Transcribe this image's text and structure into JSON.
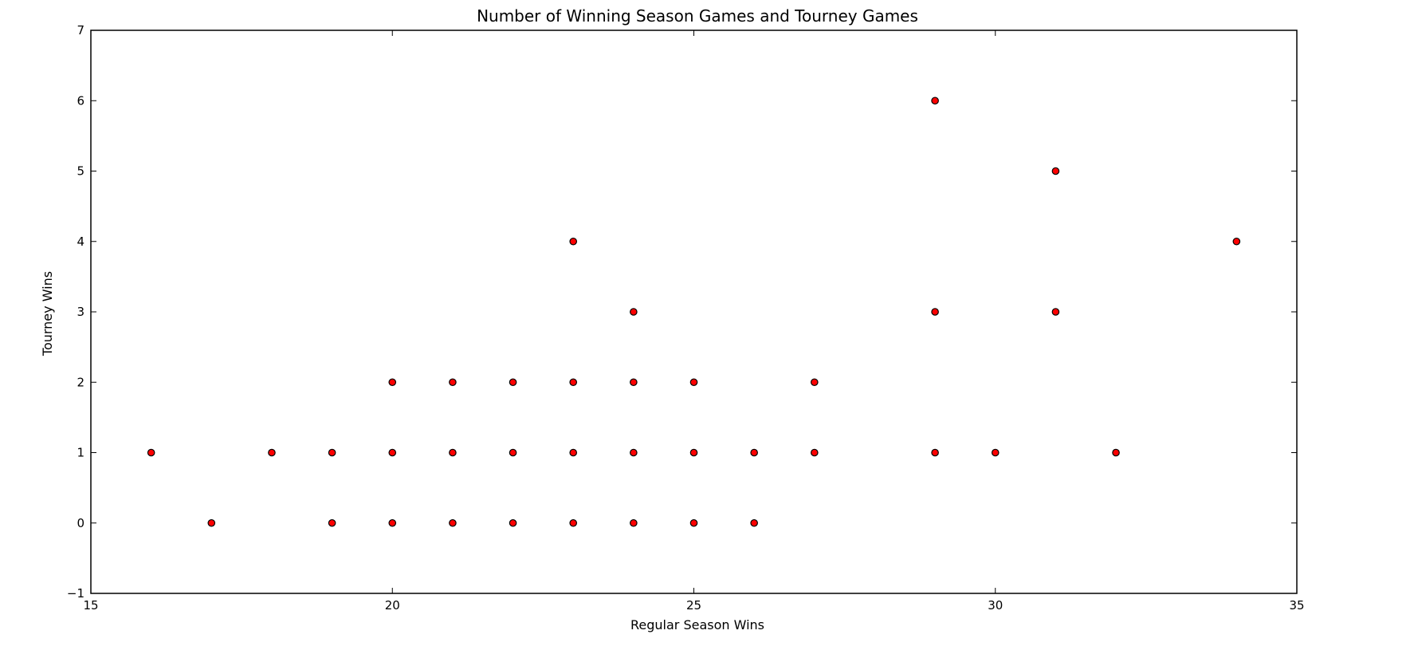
{
  "chart_data": {
    "type": "scatter",
    "title": "Number of Winning Season Games and Tourney Games",
    "xlabel": "Regular Season Wins",
    "ylabel": "Tourney Wins",
    "xlim": [
      15,
      35
    ],
    "ylim": [
      -1,
      7
    ],
    "xticks": [
      15,
      20,
      25,
      30,
      35
    ],
    "yticks": [
      -1,
      0,
      1,
      2,
      3,
      4,
      5,
      6,
      7
    ],
    "grid": false,
    "marker_color": "#ff0000",
    "marker_edge_color": "#000000",
    "points": [
      {
        "x": 16,
        "y": 1
      },
      {
        "x": 17,
        "y": 0
      },
      {
        "x": 18,
        "y": 1
      },
      {
        "x": 19,
        "y": 1
      },
      {
        "x": 19,
        "y": 0
      },
      {
        "x": 20,
        "y": 2
      },
      {
        "x": 20,
        "y": 1
      },
      {
        "x": 20,
        "y": 0
      },
      {
        "x": 21,
        "y": 2
      },
      {
        "x": 21,
        "y": 1
      },
      {
        "x": 21,
        "y": 0
      },
      {
        "x": 22,
        "y": 2
      },
      {
        "x": 22,
        "y": 1
      },
      {
        "x": 22,
        "y": 0
      },
      {
        "x": 23,
        "y": 4
      },
      {
        "x": 23,
        "y": 2
      },
      {
        "x": 23,
        "y": 1
      },
      {
        "x": 23,
        "y": 0
      },
      {
        "x": 24,
        "y": 3
      },
      {
        "x": 24,
        "y": 2
      },
      {
        "x": 24,
        "y": 1
      },
      {
        "x": 24,
        "y": 0
      },
      {
        "x": 25,
        "y": 2
      },
      {
        "x": 25,
        "y": 1
      },
      {
        "x": 25,
        "y": 0
      },
      {
        "x": 26,
        "y": 1
      },
      {
        "x": 26,
        "y": 0
      },
      {
        "x": 27,
        "y": 2
      },
      {
        "x": 27,
        "y": 1
      },
      {
        "x": 29,
        "y": 6
      },
      {
        "x": 29,
        "y": 3
      },
      {
        "x": 29,
        "y": 1
      },
      {
        "x": 30,
        "y": 1
      },
      {
        "x": 31,
        "y": 5
      },
      {
        "x": 31,
        "y": 3
      },
      {
        "x": 32,
        "y": 1
      },
      {
        "x": 34,
        "y": 4
      }
    ]
  }
}
